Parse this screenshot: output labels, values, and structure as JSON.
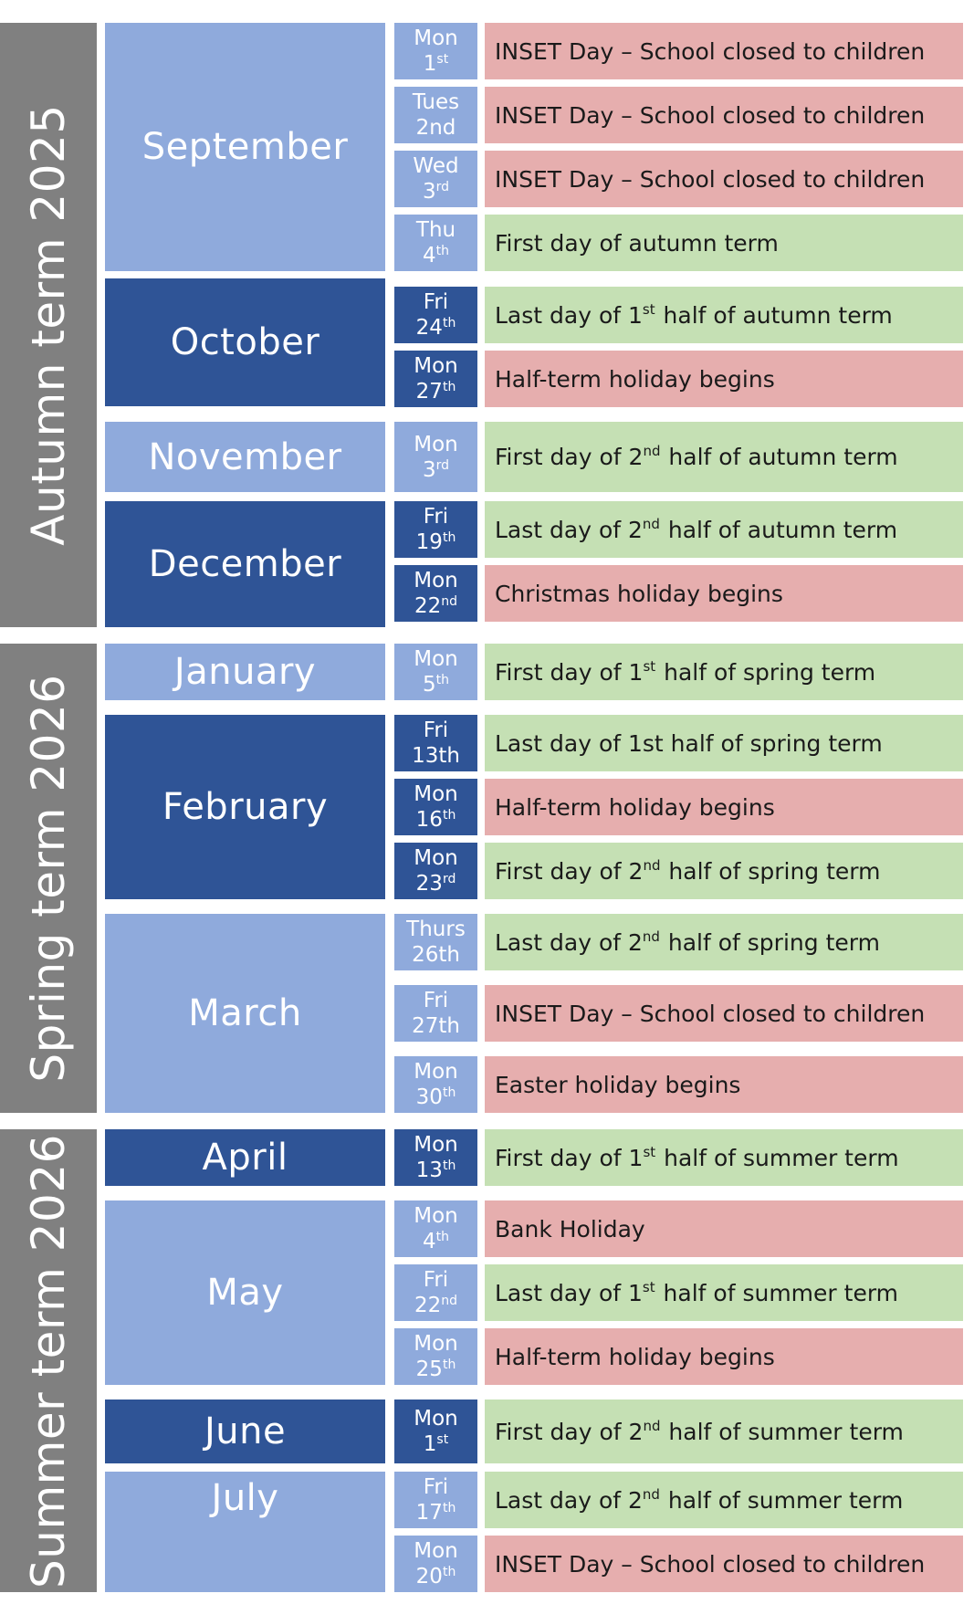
{
  "colors": {
    "term_band": "#808080",
    "month_light": "#8faadc",
    "month_dark": "#2f5496",
    "event_school": "#c5e0b4",
    "event_closed": "#e6aeae"
  },
  "terms": [
    {
      "label": "Autumn term 2025"
    },
    {
      "label": "Spring term 2026"
    },
    {
      "label": "Summer term 2026"
    }
  ],
  "months": [
    {
      "label": "September",
      "shade": "light"
    },
    {
      "label": "October",
      "shade": "dark"
    },
    {
      "label": "November",
      "shade": "light"
    },
    {
      "label": "December",
      "shade": "dark"
    },
    {
      "label": "January",
      "shade": "light"
    },
    {
      "label": "February",
      "shade": "dark"
    },
    {
      "label": "March",
      "shade": "light"
    },
    {
      "label": "April",
      "shade": "dark"
    },
    {
      "label": "May",
      "shade": "light"
    },
    {
      "label": "June",
      "shade": "dark"
    },
    {
      "label": "July",
      "shade": "light"
    }
  ],
  "rows": [
    {
      "weekday": "Mon",
      "date": "1",
      "suffix": "st",
      "event": {
        "before": "INSET Day – School closed to children",
        "sup": "",
        "after": ""
      },
      "status": "red"
    },
    {
      "weekday": "Tues",
      "date": "2nd",
      "suffix": "",
      "event": {
        "before": "INSET Day – School closed to children",
        "sup": "",
        "after": ""
      },
      "status": "red"
    },
    {
      "weekday": "Wed",
      "date": "3",
      "suffix": "rd",
      "event": {
        "before": "INSET Day – School closed to children",
        "sup": "",
        "after": ""
      },
      "status": "red"
    },
    {
      "weekday": "Thu",
      "date": "4",
      "suffix": "th",
      "event": {
        "before": "First day of autumn term",
        "sup": "",
        "after": ""
      },
      "status": "green"
    },
    {
      "weekday": "Fri",
      "date": "24",
      "suffix": "th",
      "event": {
        "before": "Last day of 1",
        "sup": "st",
        "after": " half of autumn term"
      },
      "status": "green"
    },
    {
      "weekday": "Mon",
      "date": "27",
      "suffix": "th",
      "event": {
        "before": "Half-term holiday begins",
        "sup": "",
        "after": ""
      },
      "status": "red"
    },
    {
      "weekday": "Mon",
      "date": "3",
      "suffix": "rd",
      "event": {
        "before": "First day of 2",
        "sup": "nd",
        "after": " half of autumn term"
      },
      "status": "green"
    },
    {
      "weekday": "Fri",
      "date": "19",
      "suffix": "th",
      "event": {
        "before": "Last day of 2",
        "sup": "nd",
        "after": " half of autumn term"
      },
      "status": "green"
    },
    {
      "weekday": "Mon",
      "date": "22",
      "suffix": "nd",
      "event": {
        "before": "Christmas holiday begins",
        "sup": "",
        "after": ""
      },
      "status": "red"
    },
    {
      "weekday": "Mon",
      "date": "5",
      "suffix": "th",
      "event": {
        "before": "First day of 1",
        "sup": "st",
        "after": " half of spring term"
      },
      "status": "green"
    },
    {
      "weekday": "Fri",
      "date": "13th",
      "suffix": "",
      "event": {
        "before": "Last day of 1st half of spring term",
        "sup": "",
        "after": ""
      },
      "status": "green"
    },
    {
      "weekday": "Mon",
      "date": "16",
      "suffix": "th",
      "event": {
        "before": "Half-term holiday begins",
        "sup": "",
        "after": ""
      },
      "status": "red"
    },
    {
      "weekday": "Mon",
      "date": "23",
      "suffix": "rd",
      "event": {
        "before": "First day of 2",
        "sup": "nd",
        "after": " half of spring term"
      },
      "status": "green"
    },
    {
      "weekday": "Thurs",
      "date": "26th",
      "suffix": "",
      "event": {
        "before": "Last day of 2",
        "sup": "nd",
        "after": " half of spring term"
      },
      "status": "green"
    },
    {
      "weekday": "Fri",
      "date": "27th",
      "suffix": "",
      "event": {
        "before": "INSET Day – School closed to children",
        "sup": "",
        "after": ""
      },
      "status": "red"
    },
    {
      "weekday": "Mon",
      "date": "30",
      "suffix": "th",
      "event": {
        "before": "Easter holiday begins",
        "sup": "",
        "after": ""
      },
      "status": "red"
    },
    {
      "weekday": "Mon",
      "date": "13",
      "suffix": "th",
      "event": {
        "before": "First day of 1",
        "sup": "st",
        "after": " half of summer term"
      },
      "status": "green"
    },
    {
      "weekday": "Mon",
      "date": "4",
      "suffix": "th",
      "event": {
        "before": "Bank Holiday",
        "sup": "",
        "after": ""
      },
      "status": "red"
    },
    {
      "weekday": "Fri",
      "date": "22",
      "suffix": "nd",
      "event": {
        "before": "Last day of 1",
        "sup": "st",
        "after": " half of summer term"
      },
      "status": "green"
    },
    {
      "weekday": "Mon",
      "date": "25",
      "suffix": "th",
      "event": {
        "before": "Half-term holiday begins",
        "sup": "",
        "after": ""
      },
      "status": "red"
    },
    {
      "weekday": "Mon",
      "date": "1",
      "suffix": "st",
      "event": {
        "before": "First day of 2",
        "sup": "nd",
        "after": " half of summer term"
      },
      "status": "green"
    },
    {
      "weekday": "Fri",
      "date": "17",
      "suffix": "th",
      "event": {
        "before": "Last day of 2",
        "sup": "nd",
        "after": " half of summer term"
      },
      "status": "green"
    },
    {
      "weekday": "Mon",
      "date": "20",
      "suffix": "th",
      "event": {
        "before": "INSET Day – School closed to children",
        "sup": "",
        "after": ""
      },
      "status": "red"
    }
  ]
}
